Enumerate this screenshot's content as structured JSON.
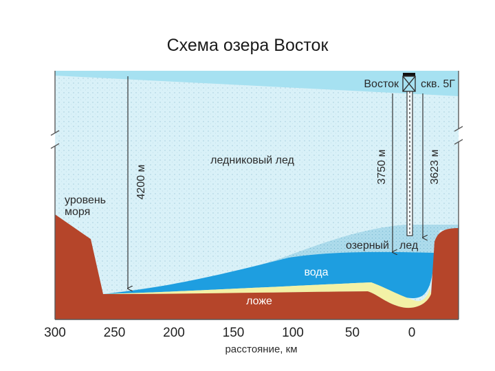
{
  "title": "Схема озера Восток",
  "labels": {
    "station": "Восток",
    "borehole": "скв. 5Г",
    "glacial_ice": "ледниковый лед",
    "sea_level_line1": "уровень",
    "sea_level_line2": "моря",
    "thickness_total": "4200 м",
    "depth_lake_ice": "3750 м",
    "depth_borehole": "3623 м",
    "lake_ice_part1": "озерный",
    "lake_ice_part2": "лед",
    "water": "вода",
    "bed": "ложе"
  },
  "axis": {
    "xlabel": "расстояние, км",
    "ticks": [
      "300",
      "250",
      "200",
      "150",
      "100",
      "50",
      "0"
    ]
  },
  "colors": {
    "glacial_ice": "#d9f1f8",
    "surface_ice": "#a6e1f1",
    "lake_ice": "#aedcec",
    "water": "#1e9ee0",
    "sediment": "#f3f1a6",
    "bedrock": "#b5452a",
    "frame": "#5a5a5a"
  }
}
